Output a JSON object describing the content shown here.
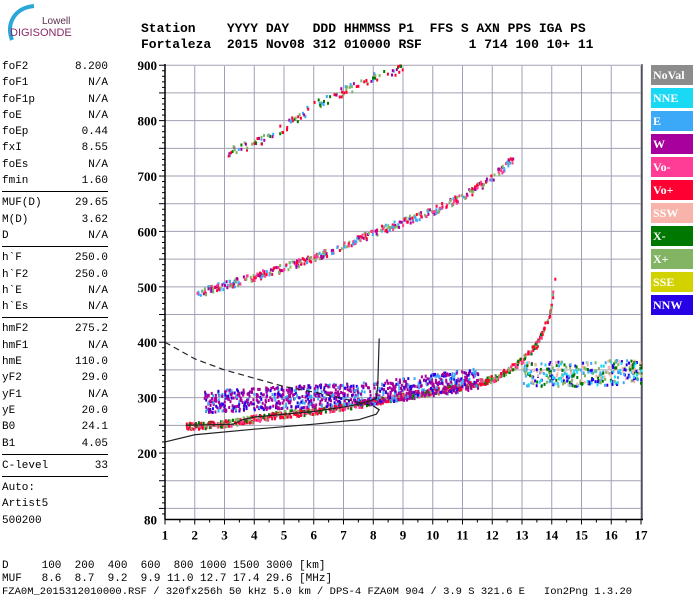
{
  "logo": {
    "line1": "Lowell",
    "line2": "DIGISONDE"
  },
  "header": {
    "labels": "Station    YYYY DAY   DDD HHMMSS P1  FFS S AXN PPS IGA PS",
    "values": "Fortaleza  2015 Nov08 312 010000 RSF      1 714 100 10+ 11"
  },
  "params": {
    "group1": [
      [
        "foF2",
        "8.200"
      ],
      [
        "foF1",
        "N/A"
      ],
      [
        "foF1p",
        "N/A"
      ],
      [
        "foE",
        "N/A"
      ],
      [
        "foEp",
        "0.44"
      ],
      [
        "fxI",
        "8.55"
      ],
      [
        "foEs",
        "N/A"
      ],
      [
        "fmin",
        "1.60"
      ]
    ],
    "group2": [
      [
        "MUF(D)",
        "29.65"
      ],
      [
        "M(D)",
        "3.62"
      ],
      [
        "D",
        "N/A"
      ]
    ],
    "group3": [
      [
        "h`F",
        "250.0"
      ],
      [
        "h`F2",
        "250.0"
      ],
      [
        "h`E",
        "N/A"
      ],
      [
        "h`Es",
        "N/A"
      ]
    ],
    "group4": [
      [
        "hmF2",
        "275.2"
      ],
      [
        "hmF1",
        "N/A"
      ],
      [
        "hmE",
        "110.0"
      ],
      [
        "yF2",
        "29.0"
      ],
      [
        "yF1",
        "N/A"
      ],
      [
        "yE",
        "20.0"
      ],
      [
        "B0",
        "24.1"
      ],
      [
        "B1",
        "4.05"
      ]
    ],
    "group5": [
      [
        "C-level",
        "33"
      ]
    ],
    "auto": [
      "Auto:",
      "Artist5",
      "500200"
    ]
  },
  "legend": [
    {
      "label": "NoVal",
      "color": "#8c8c8c"
    },
    {
      "label": "NNE",
      "color": "#19d9f5"
    },
    {
      "label": "E",
      "color": "#3ca8f8"
    },
    {
      "label": "W",
      "color": "#a8009c"
    },
    {
      "label": "Vo-",
      "color": "#ff3c96"
    },
    {
      "label": "Vo+",
      "color": "#ff0032"
    },
    {
      "label": "SSW",
      "color": "#f8b4aa"
    },
    {
      "label": "X-",
      "color": "#007800"
    },
    {
      "label": "X+",
      "color": "#82b464"
    },
    {
      "label": "SSE",
      "color": "#d2d200"
    },
    {
      "label": "NNW",
      "color": "#2800e6"
    }
  ],
  "bottom": {
    "d_row": "D     100  200  400  600  800 1000 1500 3000 [km]",
    "muf_row": "MUF   8.6  8.7  9.2  9.9 11.0 12.7 17.4 29.6 [MHz]",
    "footer": "FZA0M_2015312010000.RSF / 320fx256h 50 kHz 5.0 km / DPS-4 FZA0M 904 / 3.9 S 321.6 E   Ion2Png 1.3.20"
  },
  "chart_data": {
    "type": "scatter",
    "xlim": [
      1,
      17
    ],
    "ylim": [
      80,
      900
    ],
    "xticks": [
      "1",
      "2",
      "3",
      "4",
      "5",
      "6",
      "7",
      "8",
      "9",
      "10",
      "11",
      "12",
      "13",
      "14",
      "15",
      "16",
      "17"
    ],
    "yticks": [
      "900",
      "800",
      "700",
      "600",
      "500",
      "400",
      "300",
      "200",
      "80"
    ],
    "grid": true,
    "traces": [
      {
        "colors": [
          "#ff0032",
          "#ff0032",
          "#ff3c96",
          "#82b464",
          "#007800"
        ],
        "spread": 6,
        "density": 7,
        "points": [
          [
            1.7,
            250
          ],
          [
            3,
            255
          ],
          [
            4,
            264
          ],
          [
            5,
            272
          ],
          [
            6,
            278
          ],
          [
            7,
            286
          ],
          [
            8,
            295
          ],
          [
            9,
            305
          ],
          [
            10,
            313
          ],
          [
            11,
            322
          ],
          [
            12,
            336
          ],
          [
            12.5,
            350
          ],
          [
            13,
            370
          ],
          [
            13.5,
            400
          ],
          [
            13.9,
            450
          ],
          [
            14.1,
            515
          ]
        ]
      },
      {
        "colors": [
          "#a8009c",
          "#a8009c",
          "#a8009c",
          "#3ca8f8",
          "#2800e6"
        ],
        "spread": 20,
        "density": 10,
        "points": [
          [
            2.3,
            295
          ],
          [
            4,
            300
          ],
          [
            6,
            305
          ],
          [
            8,
            310
          ],
          [
            10,
            325
          ],
          [
            11.5,
            335
          ]
        ]
      },
      {
        "colors": [
          "#ff0032",
          "#3ca8f8",
          "#ff3c96",
          "#82b464",
          "#a8009c"
        ],
        "spread": 7,
        "density": 4,
        "points": [
          [
            2,
            490
          ],
          [
            4,
            520
          ],
          [
            6,
            555
          ],
          [
            7,
            575
          ],
          [
            8,
            600
          ],
          [
            9,
            620
          ],
          [
            10,
            640
          ],
          [
            11,
            665
          ],
          [
            12,
            700
          ],
          [
            12.7,
            735
          ]
        ]
      },
      {
        "colors": [
          "#ff0032",
          "#3ca8f8",
          "#82b464",
          "#a8009c",
          "#007800"
        ],
        "spread": 8,
        "density": 2,
        "points": [
          [
            3,
            745
          ],
          [
            4,
            760
          ],
          [
            5,
            790
          ],
          [
            6,
            830
          ],
          [
            7,
            855
          ],
          [
            8,
            880
          ],
          [
            9,
            897
          ]
        ]
      },
      {
        "colors": [
          "#f8b4aa",
          "#19d9f5",
          "#007800",
          "#3ca8f8",
          "#82b464",
          "#2800e6"
        ],
        "spread": 22,
        "density": 8,
        "points": [
          [
            13,
            345
          ],
          [
            15,
            345
          ],
          [
            17,
            350
          ]
        ]
      }
    ],
    "profile_solid": [
      [
        1,
        220
      ],
      [
        2,
        233
      ],
      [
        4,
        243
      ],
      [
        6,
        252
      ],
      [
        7.5,
        260
      ],
      [
        8.1,
        270
      ],
      [
        8.2,
        278
      ],
      [
        8.0,
        285
      ]
    ],
    "profile_trace": [
      [
        1.7,
        250
      ],
      [
        3.3,
        252
      ],
      [
        3.6,
        260
      ],
      [
        4,
        265
      ],
      [
        5,
        270
      ],
      [
        6,
        275
      ],
      [
        7,
        283
      ],
      [
        7.5,
        288
      ],
      [
        8.1,
        298
      ],
      [
        8.15,
        320
      ],
      [
        8.2,
        407
      ]
    ],
    "profile_dashed": [
      [
        1,
        400
      ],
      [
        2,
        370
      ],
      [
        3,
        350
      ],
      [
        4,
        335
      ],
      [
        5,
        320
      ],
      [
        6,
        310
      ],
      [
        7,
        298
      ],
      [
        8,
        285
      ],
      [
        8.2,
        278
      ]
    ]
  }
}
